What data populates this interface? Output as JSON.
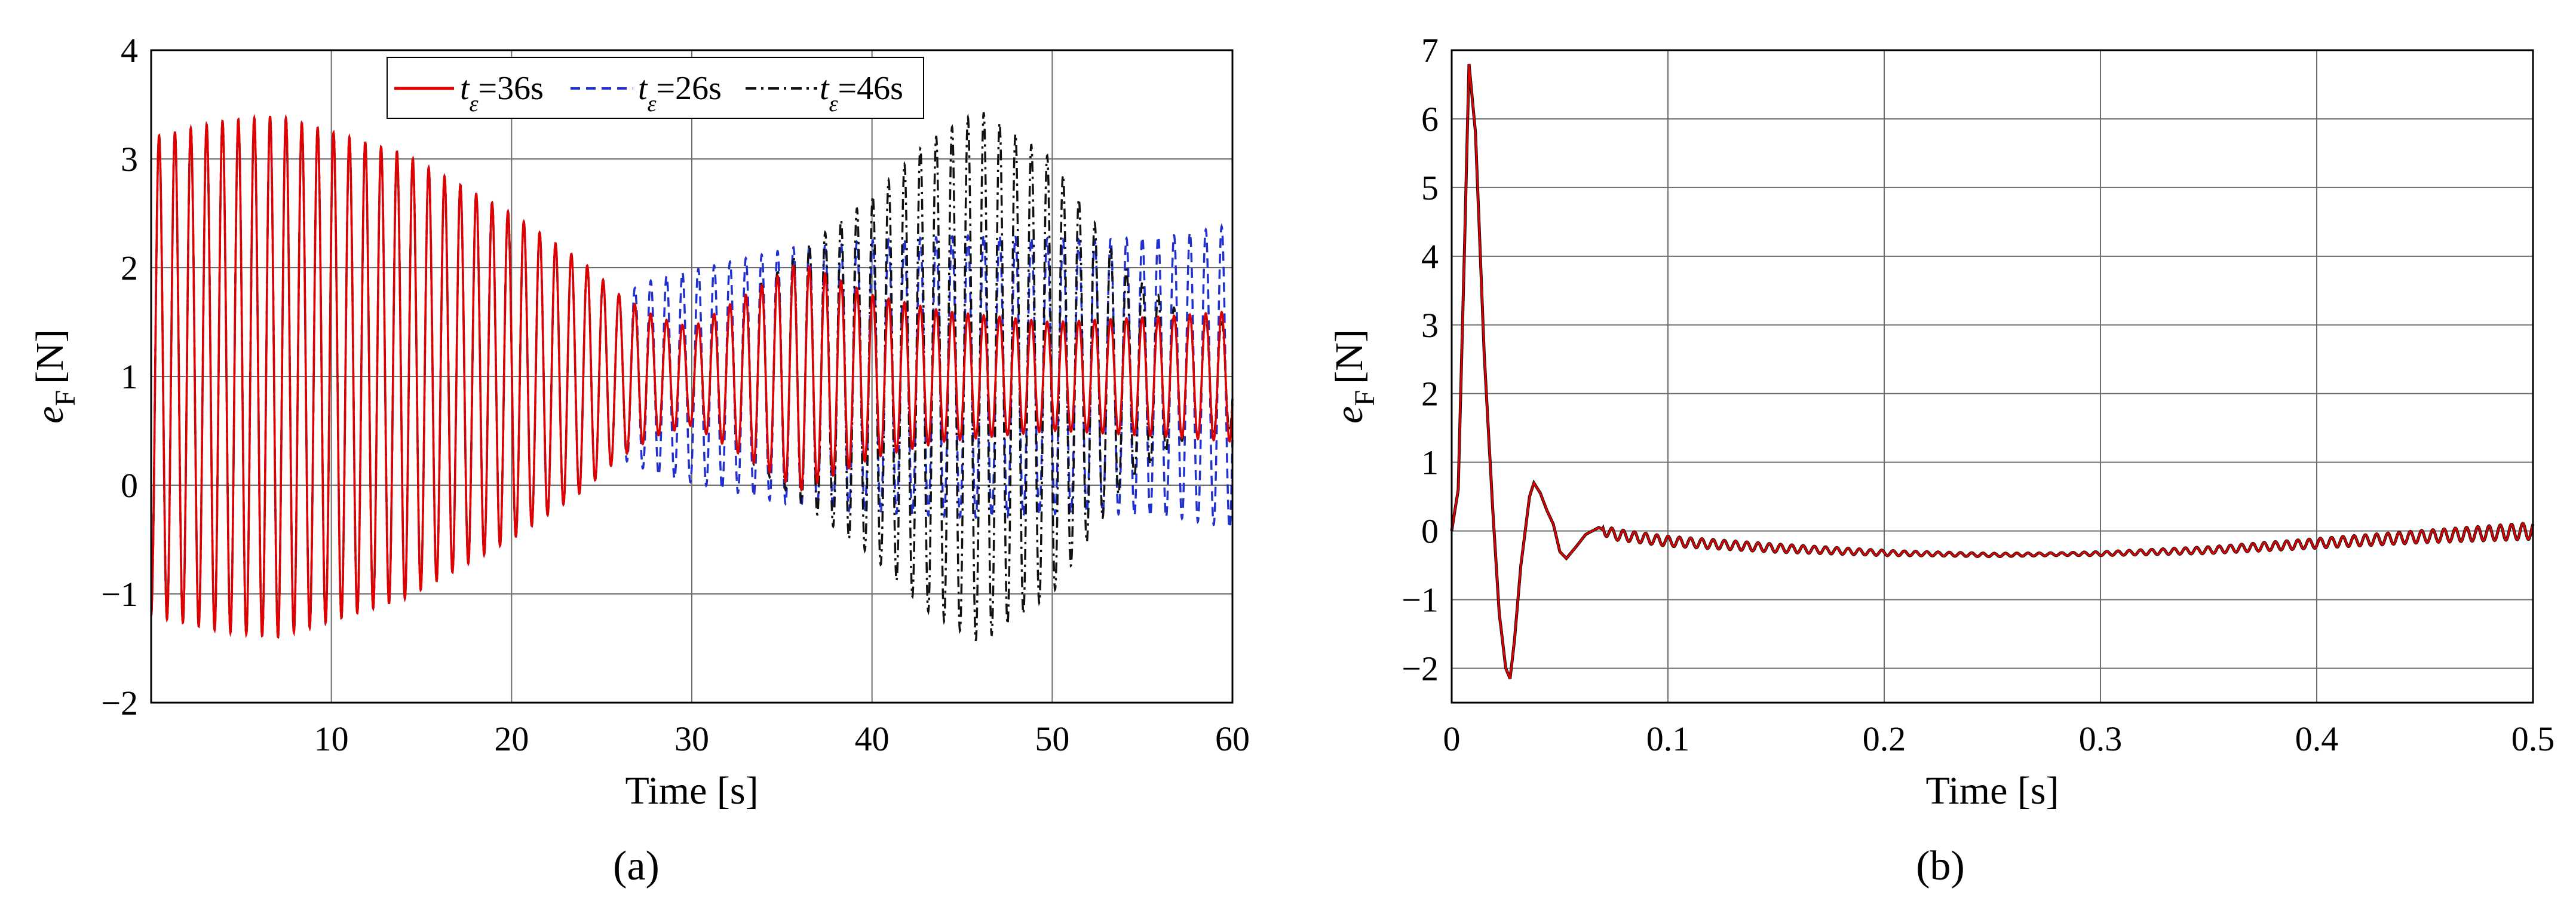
{
  "chart_data": [
    {
      "type": "line",
      "panel_label": "(a)",
      "xlabel": "Time [s]",
      "ylabel": "e",
      "ylabel_subscript": "F",
      "ylabel_unit": "[N]",
      "xlim": [
        0,
        60
      ],
      "ylim": [
        -2,
        4
      ],
      "xticks": [
        "10",
        "20",
        "30",
        "40",
        "50",
        "60"
      ],
      "yticks": [
        "4",
        "3",
        "2",
        "1",
        "0",
        "−1",
        "−2"
      ],
      "xtick_values": [
        10,
        20,
        30,
        40,
        50,
        60
      ],
      "ytick_values": [
        4,
        3,
        2,
        1,
        0,
        -1,
        -2
      ],
      "grid": true,
      "legend_position": "top-center",
      "series": [
        {
          "name": "t_ε=26s",
          "label_main": "t",
          "label_sub": "ε",
          "label_rest": "=26s",
          "color": "#1f2fd0",
          "style": "dashed",
          "period": 0.88,
          "envelope": [
            [
              0,
              1.0,
              2.2
            ],
            [
              4,
              1.0,
              2.35
            ],
            [
              7,
              1.0,
              2.4
            ],
            [
              14,
              1.0,
              2.05
            ],
            [
              20,
              1.0,
              1.5
            ],
            [
              24,
              1.0,
              1.05
            ],
            [
              26,
              1.0,
              0.75
            ],
            [
              28,
              1.0,
              0.9
            ],
            [
              32,
              1.0,
              1.05
            ],
            [
              36,
              1.0,
              1.2
            ],
            [
              40,
              1.0,
              1.25
            ],
            [
              46,
              1.0,
              1.3
            ],
            [
              52,
              1.0,
              1.25
            ],
            [
              57,
              1.0,
              1.3
            ],
            [
              60,
              1.0,
              1.4
            ]
          ]
        },
        {
          "name": "t_ε=36s",
          "label_main": "t",
          "label_sub": "ε",
          "label_rest": "=36s",
          "color": "#e00000",
          "style": "solid",
          "period": 0.88,
          "envelope": [
            [
              0,
              1.0,
              2.2
            ],
            [
              4,
              1.0,
              2.35
            ],
            [
              7,
              1.0,
              2.4
            ],
            [
              14,
              1.0,
              2.05
            ],
            [
              20,
              1.0,
              1.5
            ],
            [
              24,
              1.0,
              1.05
            ],
            [
              26,
              1.0,
              0.75
            ],
            [
              28,
              1.0,
              0.55
            ],
            [
              30,
              1.0,
              0.45
            ],
            [
              33,
              1.0,
              0.75
            ],
            [
              36,
              1.0,
              1.05
            ],
            [
              40,
              1.0,
              0.75
            ],
            [
              44,
              1.0,
              0.6
            ],
            [
              50,
              1.0,
              0.5
            ],
            [
              56,
              1.0,
              0.55
            ],
            [
              60,
              1.0,
              0.6
            ]
          ]
        },
        {
          "name": "t_ε=46s",
          "label_main": "t",
          "label_sub": "ε",
          "label_rest": "=46s",
          "color": "#111111",
          "style": "dashdot",
          "period": 0.88,
          "envelope": [
            [
              0,
              1.0,
              2.2
            ],
            [
              4,
              1.0,
              2.35
            ],
            [
              7,
              1.0,
              2.4
            ],
            [
              14,
              1.0,
              2.05
            ],
            [
              20,
              1.0,
              1.5
            ],
            [
              24,
              1.0,
              1.05
            ],
            [
              26,
              1.0,
              0.75
            ],
            [
              28,
              1.0,
              0.55
            ],
            [
              30,
              1.0,
              0.45
            ],
            [
              33,
              1.0,
              0.75
            ],
            [
              36,
              1.0,
              1.15
            ],
            [
              40,
              1.0,
              1.65
            ],
            [
              43,
              1.0,
              2.15
            ],
            [
              46,
              1.0,
              2.45
            ],
            [
              50,
              1.0,
              2.0
            ],
            [
              54,
              1.0,
              1.0
            ],
            [
              57,
              1.0,
              0.6
            ],
            [
              60,
              1.0,
              0.5
            ]
          ]
        }
      ]
    },
    {
      "type": "line",
      "panel_label": "(b)",
      "xlabel": "Time [s]",
      "ylabel": "e",
      "ylabel_subscript": "F",
      "ylabel_unit": "[N]",
      "xlim": [
        0,
        0.5
      ],
      "ylim": [
        -2.5,
        7
      ],
      "xticks": [
        "0",
        "0.1",
        "0.2",
        "0.3",
        "0.4",
        "0.5"
      ],
      "yticks": [
        "7",
        "6",
        "5",
        "4",
        "3",
        "2",
        "1",
        "0",
        "−1",
        "−2"
      ],
      "xtick_values": [
        0,
        0.1,
        0.2,
        0.3,
        0.4,
        0.5
      ],
      "ytick_values": [
        7,
        6,
        5,
        4,
        3,
        2,
        1,
        0,
        -1,
        -2
      ],
      "grid": true,
      "series": [
        {
          "color": "#111111",
          "style": "solid",
          "points": [
            [
              0,
              0
            ],
            [
              0.003,
              0.6
            ],
            [
              0.006,
              4.2
            ],
            [
              0.008,
              6.8
            ],
            [
              0.011,
              5.8
            ],
            [
              0.015,
              2.6
            ],
            [
              0.019,
              0.3
            ],
            [
              0.022,
              -1.2
            ],
            [
              0.025,
              -2.0
            ],
            [
              0.027,
              -2.15
            ],
            [
              0.029,
              -1.6
            ],
            [
              0.032,
              -0.5
            ],
            [
              0.036,
              0.5
            ],
            [
              0.038,
              0.7
            ],
            [
              0.041,
              0.55
            ],
            [
              0.044,
              0.3
            ],
            [
              0.047,
              0.1
            ],
            [
              0.05,
              -0.3
            ],
            [
              0.053,
              -0.4
            ],
            [
              0.057,
              -0.25
            ],
            [
              0.062,
              -0.05
            ],
            [
              0.068,
              0.05
            ],
            [
              0.075,
              -0.05
            ],
            [
              0.1,
              -0.15
            ],
            [
              0.15,
              -0.25
            ],
            [
              0.2,
              -0.32
            ],
            [
              0.25,
              -0.35
            ],
            [
              0.3,
              -0.33
            ],
            [
              0.35,
              -0.28
            ],
            [
              0.4,
              -0.18
            ],
            [
              0.45,
              -0.08
            ],
            [
              0.5,
              0.0
            ]
          ],
          "ripple": [
            [
              0.07,
              0.08
            ],
            [
              0.15,
              0.06
            ],
            [
              0.22,
              0.03
            ],
            [
              0.28,
              0.02
            ],
            [
              0.35,
              0.05
            ],
            [
              0.45,
              0.09
            ],
            [
              0.5,
              0.12
            ]
          ]
        },
        {
          "color": "#e00000",
          "style": "solid",
          "points": [
            [
              0,
              0
            ],
            [
              0.003,
              0.6
            ],
            [
              0.006,
              4.2
            ],
            [
              0.008,
              6.8
            ],
            [
              0.011,
              5.8
            ],
            [
              0.015,
              2.6
            ],
            [
              0.019,
              0.3
            ],
            [
              0.022,
              -1.2
            ],
            [
              0.025,
              -2.0
            ],
            [
              0.027,
              -2.15
            ],
            [
              0.029,
              -1.6
            ],
            [
              0.032,
              -0.5
            ],
            [
              0.036,
              0.5
            ],
            [
              0.038,
              0.7
            ],
            [
              0.041,
              0.55
            ],
            [
              0.044,
              0.3
            ],
            [
              0.047,
              0.1
            ],
            [
              0.05,
              -0.3
            ],
            [
              0.053,
              -0.4
            ],
            [
              0.057,
              -0.25
            ],
            [
              0.062,
              -0.05
            ],
            [
              0.068,
              0.05
            ],
            [
              0.075,
              -0.05
            ],
            [
              0.1,
              -0.15
            ],
            [
              0.15,
              -0.25
            ],
            [
              0.2,
              -0.32
            ],
            [
              0.25,
              -0.35
            ],
            [
              0.3,
              -0.33
            ],
            [
              0.35,
              -0.28
            ],
            [
              0.4,
              -0.18
            ],
            [
              0.45,
              -0.08
            ],
            [
              0.5,
              0.0
            ]
          ],
          "ripple": [
            [
              0.07,
              0.08
            ],
            [
              0.15,
              0.06
            ],
            [
              0.22,
              0.03
            ],
            [
              0.28,
              0.02
            ],
            [
              0.35,
              0.05
            ],
            [
              0.45,
              0.09
            ],
            [
              0.5,
              0.12
            ]
          ]
        }
      ]
    }
  ]
}
